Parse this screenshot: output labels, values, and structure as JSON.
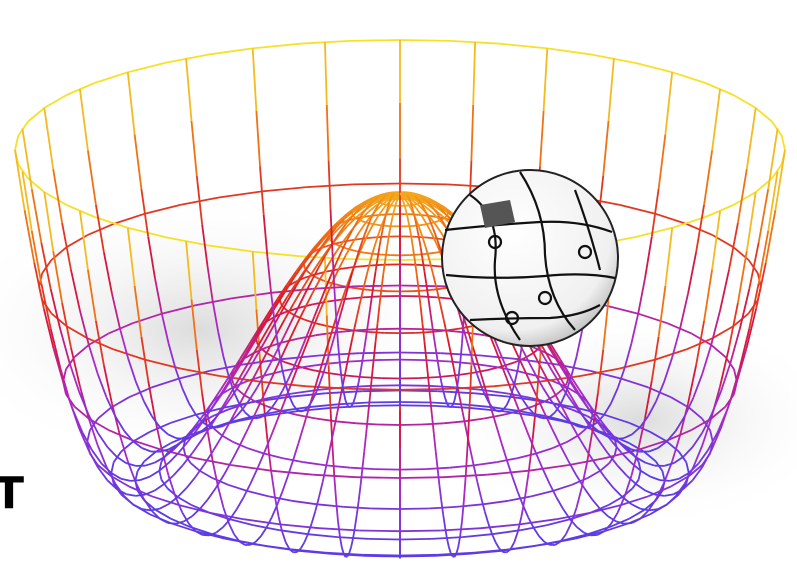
{
  "caption": {
    "text": "T"
  }
}
